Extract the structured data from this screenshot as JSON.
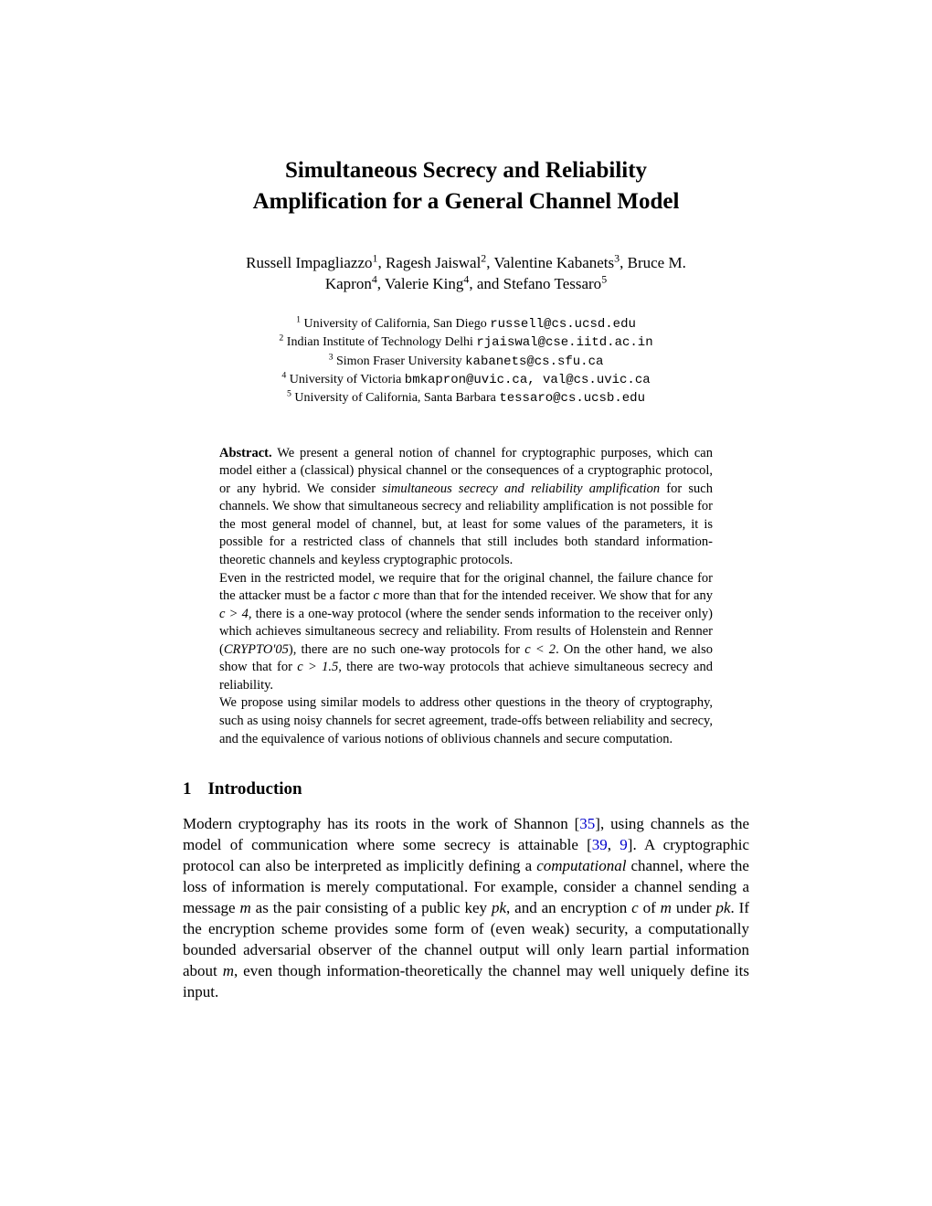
{
  "title_line1": "Simultaneous Secrecy and Reliability",
  "title_line2": "Amplification for a General Channel Model",
  "authors_line1_a": "Russell Impagliazzo",
  "authors_line1_b": ", Ragesh Jaiswal",
  "authors_line1_c": ", Valentine Kabanets",
  "authors_line1_d": ", Bruce M.",
  "authors_line2_a": "Kapron",
  "authors_line2_b": ", Valerie King",
  "authors_line2_c": ", and Stefano Tessaro",
  "aff1_text": " University of California, San Diego ",
  "aff1_email": "russell@cs.ucsd.edu",
  "aff2_text": " Indian Institute of Technology Delhi ",
  "aff2_email": "rjaiswal@cse.iitd.ac.in",
  "aff3_text": " Simon Fraser University ",
  "aff3_email": "kabanets@cs.sfu.ca",
  "aff4_text": " University of Victoria ",
  "aff4_email": "bmkapron@uvic.ca, val@cs.uvic.ca",
  "aff5_text": " University of California, Santa Barbara ",
  "aff5_email": "tessaro@cs.ucsb.edu",
  "abstract_label": "Abstract.",
  "abstract_p1a": " We present a general notion of channel for cryptographic purposes, which can model either a (classical) physical channel or the consequences of a cryptographic protocol, or any hybrid. We consider ",
  "abstract_p1_em": "simultaneous secrecy and reliability amplification",
  "abstract_p1b": " for such channels. We show that simultaneous secrecy and reliability amplification is not possible for the most general model of channel, but, at least for some values of the parameters, it is possible for a restricted class of channels that still includes both standard information-theoretic channels and keyless cryptographic protocols.",
  "abstract_p2a": "Even in the restricted model, we require that for the original channel, the failure chance for the attacker must be a factor ",
  "abstract_c": "c",
  "abstract_p2b": " more than that for the intended receiver. We show that for any ",
  "abstract_cgt4": "c > 4",
  "abstract_p2c": ", there is a one-way protocol (where the sender sends information to the receiver only) which achieves simultaneous secrecy and reliability. From results of Holenstein and Renner (",
  "abstract_crypto": "CRYPTO'05",
  "abstract_p2d": "), there are no such one-way protocols for ",
  "abstract_clt2": "c < 2",
  "abstract_p2e": ". On the other hand, we also show that for ",
  "abstract_cgt15": "c > 1.5",
  "abstract_p2f": ", there are two-way protocols that achieve simultaneous secrecy and reliability.",
  "abstract_p3": "We propose using similar models to address other questions in the theory of cryptography, such as using noisy channels for secret agreement, trade-offs between reliability and secrecy, and the equivalence of various notions of oblivious channels and secure computation.",
  "section1_num": "1",
  "section1_title": "Introduction",
  "intro_a": "Modern cryptography has its roots in the work of Shannon [",
  "cite35": "35",
  "intro_b": "], using channels as the model of communication where some secrecy is attainable [",
  "cite39": "39",
  "intro_c": ", ",
  "cite9": "9",
  "intro_d": "]. A cryptographic protocol can also be interpreted as implicitly defining a ",
  "intro_comp": "computational",
  "intro_e": " channel, where the loss of information is merely computational. For example, consider a channel sending a message ",
  "intro_m": "m",
  "intro_f": " as the pair consisting of a public key ",
  "intro_pk": "pk",
  "intro_g": ", and an encryption ",
  "intro_cvar": "c",
  "intro_h": " of ",
  "intro_i": " under ",
  "intro_j": ". If the encryption scheme provides some form of (even weak) security, a computationally bounded adversarial observer of the channel output will only learn partial information about ",
  "intro_k": ", even though information-theoretically the channel may well uniquely define its input."
}
